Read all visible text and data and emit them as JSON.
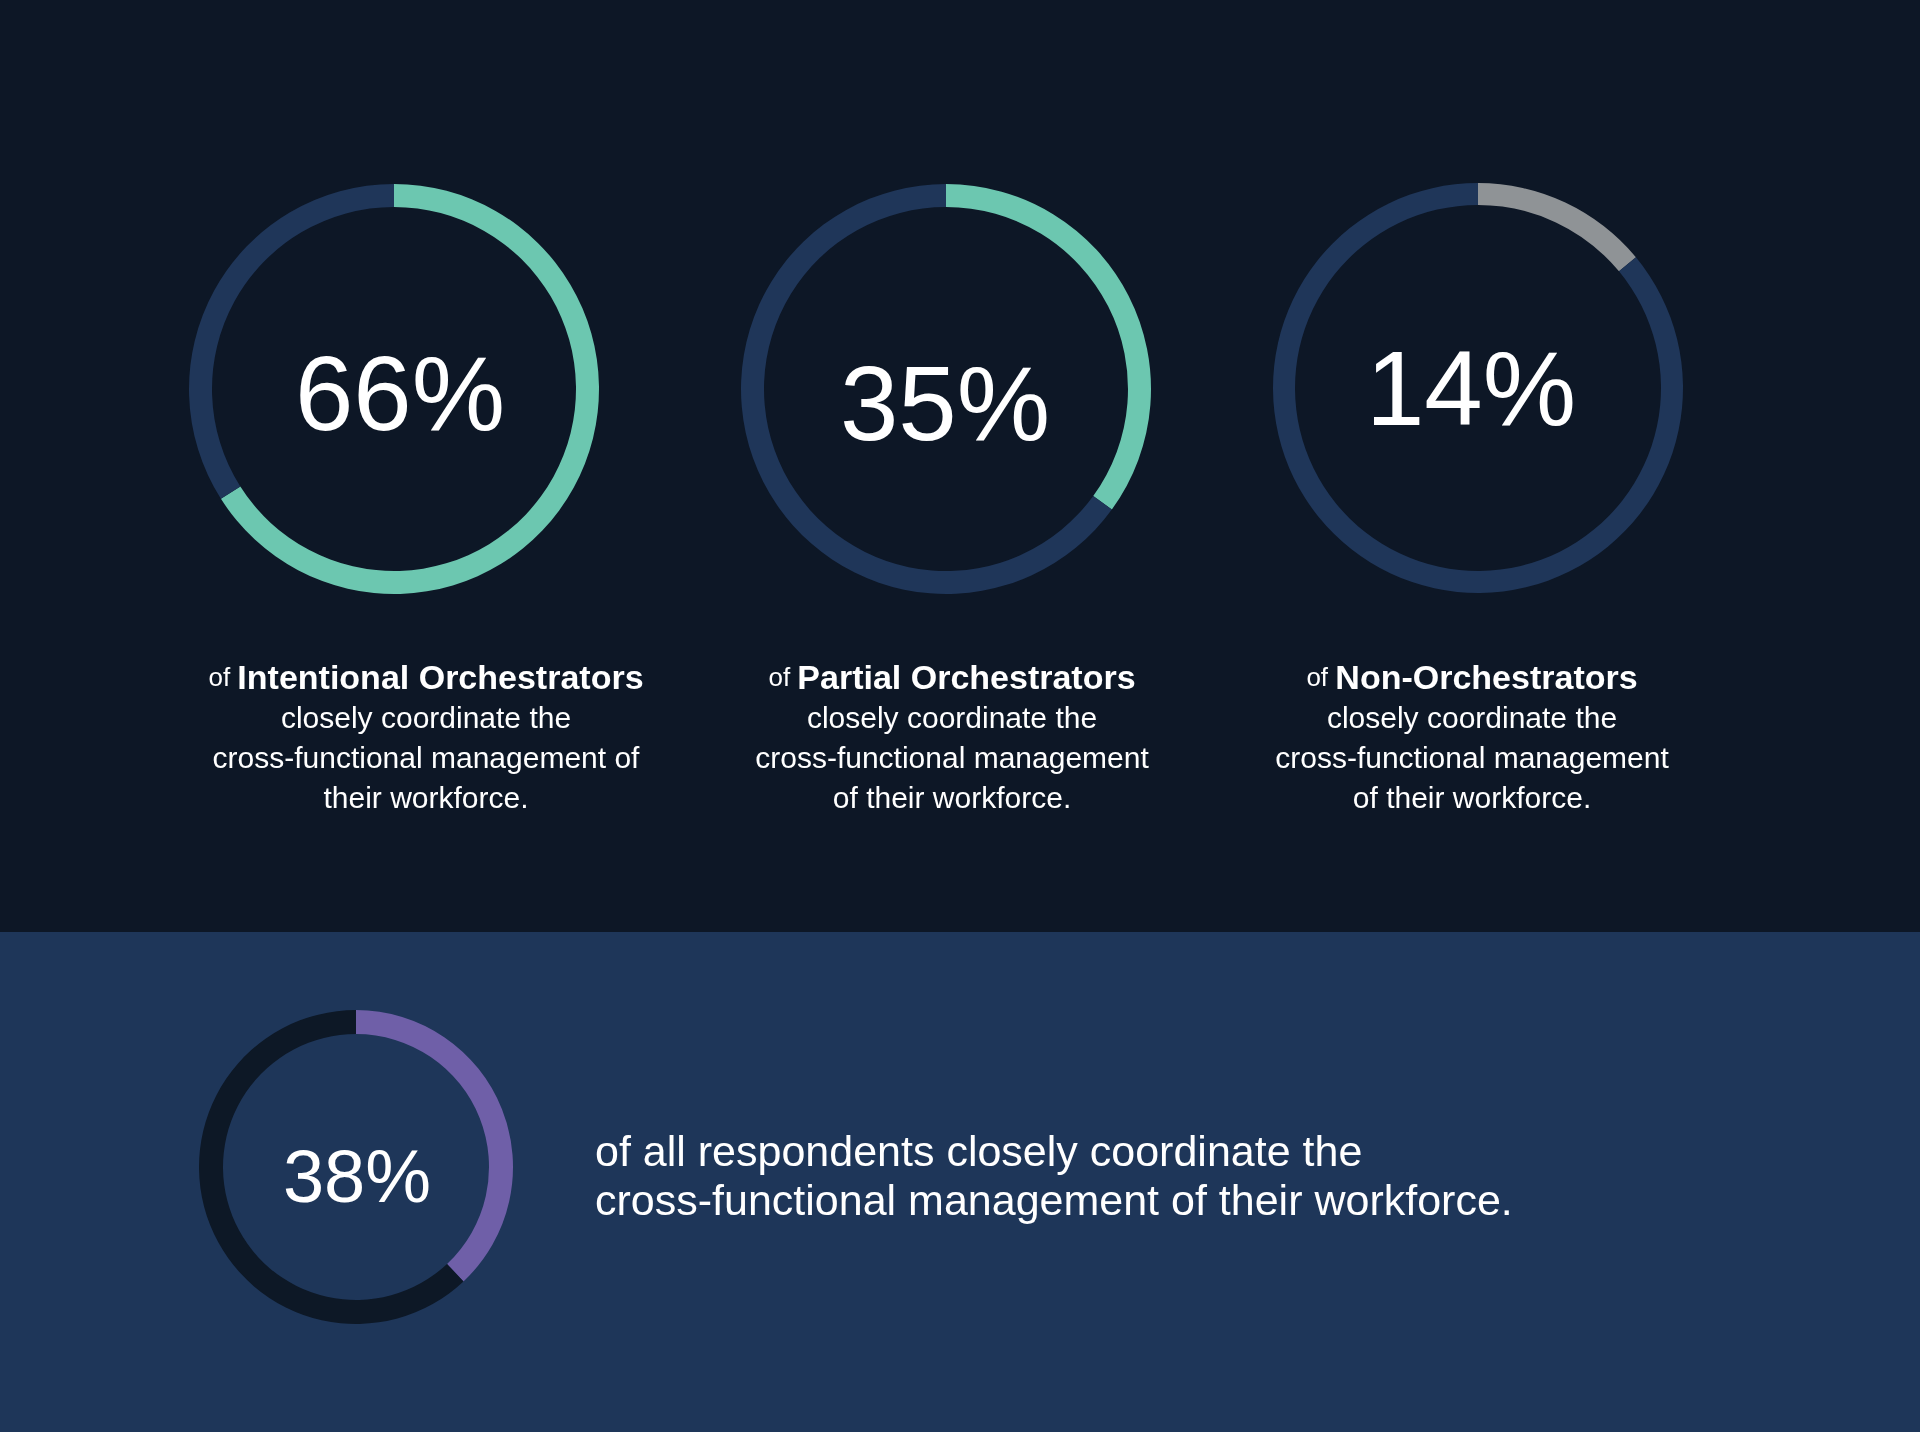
{
  "chart_data": [
    {
      "type": "donut",
      "categories": [
        null,
        null
      ],
      "values": [
        66,
        34
      ],
      "colors": [
        "#6cc7b0",
        "#1f3659"
      ],
      "annotations": [
        "66%",
        "of",
        "Intentional Orchestrators",
        "closely coordinate the",
        "cross-functional management of",
        "their workforce."
      ]
    },
    {
      "type": "donut",
      "categories": [
        null,
        null
      ],
      "values": [
        35,
        65
      ],
      "colors": [
        "#6cc7b0",
        "#1f3659"
      ],
      "annotations": [
        "35%",
        "of",
        "Partial Orchestrators",
        "closely coordinate the",
        "cross-functional management",
        "of their workforce."
      ]
    },
    {
      "type": "donut",
      "categories": [
        null,
        null
      ],
      "values": [
        14,
        86
      ],
      "colors": [
        "#8f9396",
        "#1f3659"
      ],
      "annotations": [
        "14%",
        "of",
        "Non-Orchestrators",
        "closely coordinate the",
        "cross-functional management",
        "of their workforce."
      ]
    },
    {
      "type": "donut",
      "categories": [
        null,
        null
      ],
      "values": [
        38,
        62
      ],
      "colors": [
        "#6f5fa8",
        "#0d1826"
      ],
      "annotations": [
        "38%",
        "of all respondents closely coordinate the",
        "cross-functional management of their workforce."
      ]
    }
  ]
}
